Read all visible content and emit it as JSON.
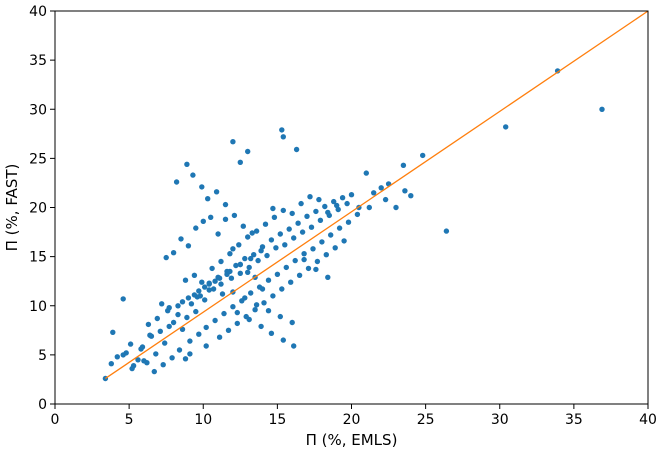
{
  "chart_data": {
    "type": "scatter",
    "xlabel": "Π (%, EMLS)",
    "ylabel": "Π (%, FAST)",
    "xlim": [
      0,
      40
    ],
    "ylim": [
      0,
      40
    ],
    "xticks": [
      "0",
      "5",
      "10",
      "15",
      "20",
      "25",
      "30",
      "35",
      "40"
    ],
    "yticks": [
      "0",
      "5",
      "10",
      "15",
      "20",
      "25",
      "30",
      "35",
      "40"
    ],
    "grid": false,
    "point_color": "#1f77b4",
    "line_color": "#ff7f0e",
    "reference_line": {
      "x": [
        3.4,
        40
      ],
      "y": [
        2.6,
        40
      ]
    },
    "series": [
      {
        "x": [
          3.4,
          3.9,
          4.2,
          4.6,
          4.8,
          5.1,
          5.3,
          5.6,
          5.9,
          6.2,
          6.5,
          6.8,
          7.1,
          7.4,
          7.7,
          8.0,
          8.3,
          8.6,
          8.9,
          9.2,
          9.5,
          9.8,
          10.1,
          10.4,
          10.7,
          11.0,
          11.3,
          11.6,
          11.9,
          12.2,
          12.5,
          12.8,
          13.1,
          13.4,
          13.7,
          14.0,
          14.3,
          14.6,
          14.9,
          15.2,
          15.5,
          15.8,
          16.1,
          16.4,
          16.7,
          17.0,
          17.3,
          17.6,
          17.9,
          18.2,
          18.5,
          18.8,
          19.1,
          19.4,
          19.7,
          20.0,
          20.5,
          21.0,
          21.5,
          22.0,
          22.5,
          23.0,
          23.5,
          24.0,
          24.8,
          26.4,
          30.4,
          33.9,
          36.9,
          3.8,
          4.6,
          5.8,
          6.4,
          7.2,
          8.8,
          9.4,
          9.9,
          10.6,
          11.2,
          11.8,
          12.4,
          13.0,
          13.6,
          14.2,
          14.8,
          15.4,
          16.0,
          16.6,
          17.2,
          17.8,
          18.4,
          19.0,
          8.2,
          8.9,
          9.3,
          9.9,
          10.3,
          10.9,
          11.5,
          12.1,
          12.7,
          13.3,
          7.5,
          8.0,
          8.5,
          9.0,
          9.5,
          10.0,
          10.5,
          11.0,
          11.5,
          12.0,
          12.5,
          13.0,
          13.5,
          14.0,
          5.2,
          6.0,
          6.7,
          7.3,
          7.9,
          8.4,
          9.1,
          9.7,
          10.2,
          10.8,
          11.4,
          12.0,
          12.6,
          13.2,
          13.8,
          14.4,
          15.0,
          15.6,
          16.2,
          16.8,
          17.4,
          18.0,
          18.6,
          19.2,
          19.8,
          20.4,
          21.2,
          22.3,
          23.6,
          15.3,
          15.4,
          16.3,
          12.0,
          12.5,
          13.0,
          14.7,
          9.1,
          8.8,
          10.2,
          11.1,
          11.7,
          12.3,
          12.9,
          13.5,
          14.1,
          14.7,
          15.3,
          15.9,
          16.5,
          17.1,
          17.7,
          18.3,
          18.9,
          19.5,
          9.6,
          10.4,
          11.2,
          12.0,
          12.8,
          13.6,
          14.4,
          15.2,
          16.0,
          16.8,
          17.6,
          18.4,
          7.7,
          8.6,
          9.4,
          10.1,
          10.8,
          11.6,
          12.3,
          13.1,
          13.9,
          14.6,
          15.4,
          16.1,
          6.3,
          6.9,
          7.6,
          8.3,
          9.0,
          9.7,
          10.4,
          11.1,
          11.8,
          12.5,
          13.2,
          13.9
        ],
        "y": [
          2.6,
          7.3,
          4.8,
          10.7,
          5.2,
          6.1,
          3.9,
          4.5,
          5.8,
          4.2,
          6.9,
          5.1,
          7.4,
          6.2,
          7.9,
          8.3,
          9.1,
          7.6,
          8.8,
          10.2,
          9.4,
          11.0,
          10.6,
          12.3,
          11.7,
          12.9,
          11.2,
          13.5,
          12.8,
          14.1,
          13.3,
          14.8,
          13.9,
          15.2,
          14.6,
          16.0,
          15.1,
          16.7,
          15.9,
          17.3,
          16.2,
          17.8,
          16.9,
          18.4,
          17.5,
          19.1,
          18.0,
          19.6,
          18.7,
          20.1,
          19.2,
          20.6,
          19.8,
          21.0,
          20.4,
          21.3,
          20.0,
          23.5,
          21.5,
          22.0,
          22.4,
          20.0,
          24.3,
          21.2,
          25.3,
          17.6,
          28.2,
          33.9,
          30.0,
          4.1,
          5.0,
          5.6,
          7.0,
          10.2,
          12.6,
          13.1,
          12.4,
          13.8,
          14.5,
          15.3,
          16.2,
          17.0,
          17.6,
          18.3,
          19.0,
          19.7,
          19.4,
          20.4,
          21.1,
          20.8,
          19.5,
          20.2,
          22.6,
          24.4,
          23.3,
          22.1,
          20.9,
          21.6,
          20.3,
          19.2,
          18.1,
          17.4,
          14.9,
          15.4,
          16.8,
          16.1,
          17.9,
          18.6,
          19.0,
          17.3,
          18.8,
          15.8,
          14.2,
          13.4,
          12.9,
          11.7,
          3.6,
          4.4,
          3.3,
          4.0,
          4.7,
          5.5,
          6.4,
          7.1,
          7.8,
          8.5,
          9.2,
          9.9,
          10.5,
          11.3,
          11.9,
          12.6,
          13.2,
          13.9,
          14.6,
          15.3,
          15.8,
          16.5,
          17.2,
          17.9,
          18.5,
          19.3,
          20.0,
          20.8,
          21.7,
          27.9,
          27.2,
          25.9,
          26.7,
          24.6,
          25.7,
          19.9,
          5.1,
          4.6,
          5.9,
          6.8,
          7.5,
          8.2,
          8.9,
          9.6,
          10.3,
          11.0,
          11.7,
          12.4,
          13.1,
          13.8,
          14.5,
          15.2,
          15.9,
          16.6,
          10.9,
          11.6,
          12.2,
          11.4,
          10.8,
          10.1,
          9.5,
          8.9,
          8.3,
          14.7,
          13.7,
          12.9,
          9.8,
          10.4,
          11.1,
          11.9,
          12.5,
          13.2,
          9.3,
          8.6,
          7.9,
          7.2,
          6.5,
          5.9,
          8.1,
          8.7,
          9.5,
          10.0,
          10.8,
          11.5,
          12.2,
          12.8,
          13.5,
          14.2,
          14.8,
          15.6
        ]
      }
    ]
  }
}
